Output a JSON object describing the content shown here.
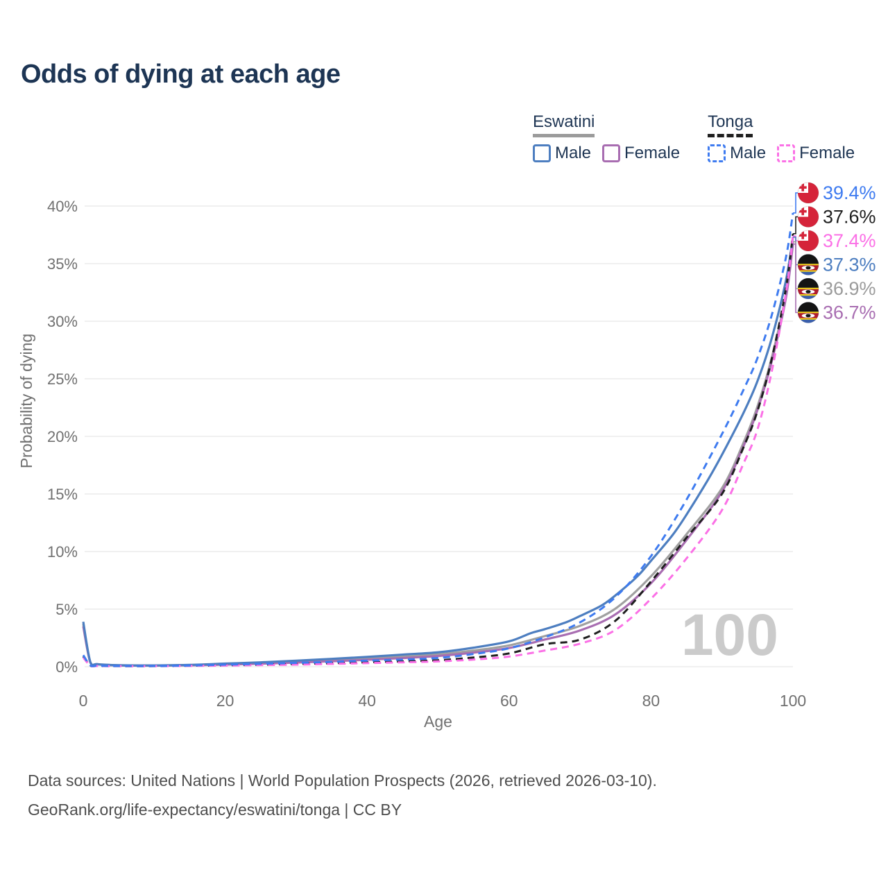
{
  "title": "Odds of dying at each age",
  "watermark_age": "100",
  "legend": {
    "groups": [
      {
        "name": "Eswatini",
        "line_style": "solid",
        "line_color": "#9b9b9b",
        "items": [
          {
            "label": "Male",
            "color": "#4d7ec0",
            "dashed": false
          },
          {
            "label": "Female",
            "color": "#a86db1",
            "dashed": false
          }
        ]
      },
      {
        "name": "Tonga",
        "line_style": "dashed",
        "line_color": "#1f1f1f",
        "items": [
          {
            "label": "Male",
            "color": "#3e7bf0",
            "dashed": true
          },
          {
            "label": "Female",
            "color": "#fb70e6",
            "dashed": true
          }
        ]
      }
    ]
  },
  "chart_data": {
    "type": "line",
    "title": "Odds of dying at each age",
    "xlabel": "Age",
    "ylabel": "Probability of dying",
    "xlim": [
      0,
      100
    ],
    "ylim": [
      0,
      40
    ],
    "grid": "horizontal",
    "x_ticks": [
      {
        "value": 0,
        "label": "0"
      },
      {
        "value": 20,
        "label": "20"
      },
      {
        "value": 40,
        "label": "40"
      },
      {
        "value": 60,
        "label": "60"
      },
      {
        "value": 80,
        "label": "80"
      },
      {
        "value": 100,
        "label": "100"
      }
    ],
    "y_ticks": [
      {
        "value": 0,
        "label": "0%"
      },
      {
        "value": 5,
        "label": "5%"
      },
      {
        "value": 10,
        "label": "10%"
      },
      {
        "value": 15,
        "label": "15%"
      },
      {
        "value": 20,
        "label": "20%"
      },
      {
        "value": 25,
        "label": "25%"
      },
      {
        "value": 30,
        "label": "30%"
      },
      {
        "value": 35,
        "label": "35%"
      },
      {
        "value": 40,
        "label": "40%"
      }
    ],
    "series": [
      {
        "name": "Eswatini Total",
        "country": "Eswatini",
        "sex": "Both",
        "color": "#a0a0a0",
        "dashed": false,
        "end_value": 36.9,
        "points": [
          [
            0,
            3.7
          ],
          [
            1,
            0.38
          ],
          [
            2,
            0.21
          ],
          [
            5,
            0.12
          ],
          [
            10,
            0.1
          ],
          [
            15,
            0.14
          ],
          [
            20,
            0.22
          ],
          [
            25,
            0.31
          ],
          [
            30,
            0.43
          ],
          [
            35,
            0.56
          ],
          [
            40,
            0.71
          ],
          [
            45,
            0.88
          ],
          [
            50,
            1.07
          ],
          [
            55,
            1.4
          ],
          [
            60,
            1.85
          ],
          [
            65,
            2.65
          ],
          [
            70,
            3.55
          ],
          [
            75,
            5.05
          ],
          [
            80,
            7.85
          ],
          [
            85,
            11.5
          ],
          [
            90,
            15.5
          ],
          [
            93,
            19.4
          ],
          [
            95,
            22.6
          ],
          [
            97,
            26.8
          ],
          [
            99,
            32.3
          ],
          [
            100,
            36.9
          ]
        ]
      },
      {
        "name": "Eswatini Female",
        "country": "Eswatini",
        "sex": "Female",
        "color": "#a86db1",
        "dashed": false,
        "end_value": 36.7,
        "points": [
          [
            0,
            3.5
          ],
          [
            1,
            0.36
          ],
          [
            2,
            0.2
          ],
          [
            5,
            0.11
          ],
          [
            10,
            0.09
          ],
          [
            15,
            0.12
          ],
          [
            20,
            0.18
          ],
          [
            25,
            0.26
          ],
          [
            30,
            0.36
          ],
          [
            35,
            0.47
          ],
          [
            40,
            0.6
          ],
          [
            45,
            0.75
          ],
          [
            50,
            0.93
          ],
          [
            55,
            1.22
          ],
          [
            60,
            1.62
          ],
          [
            65,
            2.35
          ],
          [
            70,
            3.15
          ],
          [
            75,
            4.55
          ],
          [
            80,
            7.25
          ],
          [
            85,
            11.0
          ],
          [
            90,
            15.2
          ],
          [
            93,
            19.1
          ],
          [
            95,
            22.3
          ],
          [
            97,
            26.5
          ],
          [
            99,
            32.0
          ],
          [
            100,
            36.7
          ]
        ]
      },
      {
        "name": "Eswatini Male",
        "country": "Eswatini",
        "sex": "Male",
        "color": "#4d7ec0",
        "dashed": false,
        "end_value": 37.3,
        "points": [
          [
            0,
            3.9
          ],
          [
            1,
            0.4
          ],
          [
            2,
            0.22
          ],
          [
            5,
            0.13
          ],
          [
            10,
            0.11
          ],
          [
            15,
            0.16
          ],
          [
            20,
            0.27
          ],
          [
            25,
            0.38
          ],
          [
            30,
            0.52
          ],
          [
            35,
            0.68
          ],
          [
            40,
            0.85
          ],
          [
            45,
            1.05
          ],
          [
            50,
            1.25
          ],
          [
            55,
            1.65
          ],
          [
            60,
            2.2
          ],
          [
            63,
            2.9
          ],
          [
            65,
            3.25
          ],
          [
            68,
            3.85
          ],
          [
            70,
            4.4
          ],
          [
            73,
            5.3
          ],
          [
            75,
            6.2
          ],
          [
            78,
            7.8
          ],
          [
            80,
            9.2
          ],
          [
            83,
            11.4
          ],
          [
            85,
            13.2
          ],
          [
            88,
            16.2
          ],
          [
            90,
            18.4
          ],
          [
            93,
            22.0
          ],
          [
            95,
            24.8
          ],
          [
            97,
            28.5
          ],
          [
            99,
            33.5
          ],
          [
            100,
            37.3
          ]
        ]
      },
      {
        "name": "Tonga Total",
        "country": "Tonga",
        "sex": "Both",
        "color": "#1f1f1f",
        "dashed": true,
        "end_value": 37.6,
        "points": [
          [
            0,
            0.9
          ],
          [
            1,
            0.1
          ],
          [
            2,
            0.07
          ],
          [
            5,
            0.05
          ],
          [
            10,
            0.05
          ],
          [
            15,
            0.08
          ],
          [
            20,
            0.12
          ],
          [
            25,
            0.17
          ],
          [
            30,
            0.23
          ],
          [
            35,
            0.3
          ],
          [
            40,
            0.38
          ],
          [
            45,
            0.46
          ],
          [
            50,
            0.56
          ],
          [
            55,
            0.8
          ],
          [
            60,
            1.15
          ],
          [
            65,
            1.95
          ],
          [
            70,
            2.35
          ],
          [
            75,
            4.0
          ],
          [
            80,
            7.4
          ],
          [
            85,
            11.2
          ],
          [
            90,
            15.0
          ],
          [
            93,
            19.0
          ],
          [
            95,
            22.2
          ],
          [
            97,
            26.7
          ],
          [
            99,
            32.8
          ],
          [
            100,
            37.6
          ]
        ]
      },
      {
        "name": "Tonga Female",
        "country": "Tonga",
        "sex": "Female",
        "color": "#fb70e6",
        "dashed": true,
        "end_value": 37.4,
        "points": [
          [
            0,
            0.8
          ],
          [
            1,
            0.09
          ],
          [
            2,
            0.06
          ],
          [
            5,
            0.05
          ],
          [
            10,
            0.05
          ],
          [
            15,
            0.07
          ],
          [
            20,
            0.1
          ],
          [
            25,
            0.14
          ],
          [
            30,
            0.18
          ],
          [
            35,
            0.24
          ],
          [
            40,
            0.31
          ],
          [
            45,
            0.38
          ],
          [
            50,
            0.46
          ],
          [
            55,
            0.62
          ],
          [
            60,
            0.88
          ],
          [
            65,
            1.4
          ],
          [
            70,
            2.0
          ],
          [
            75,
            3.2
          ],
          [
            80,
            5.9
          ],
          [
            85,
            9.4
          ],
          [
            90,
            13.6
          ],
          [
            93,
            17.6
          ],
          [
            95,
            20.6
          ],
          [
            97,
            25.6
          ],
          [
            99,
            32.4
          ],
          [
            100,
            37.4
          ]
        ]
      },
      {
        "name": "Tonga Male",
        "country": "Tonga",
        "sex": "Male",
        "color": "#3e7bf0",
        "dashed": true,
        "end_value": 39.4,
        "points": [
          [
            0,
            1.0
          ],
          [
            1,
            0.12
          ],
          [
            2,
            0.08
          ],
          [
            5,
            0.06
          ],
          [
            10,
            0.06
          ],
          [
            15,
            0.1
          ],
          [
            20,
            0.18
          ],
          [
            25,
            0.25
          ],
          [
            30,
            0.33
          ],
          [
            35,
            0.42
          ],
          [
            40,
            0.53
          ],
          [
            45,
            0.62
          ],
          [
            50,
            0.76
          ],
          [
            55,
            1.1
          ],
          [
            60,
            1.6
          ],
          [
            65,
            2.55
          ],
          [
            70,
            3.85
          ],
          [
            75,
            6.05
          ],
          [
            80,
            9.6
          ],
          [
            85,
            14.5
          ],
          [
            90,
            20.2
          ],
          [
            93,
            24.0
          ],
          [
            95,
            26.8
          ],
          [
            97,
            30.5
          ],
          [
            99,
            35.5
          ],
          [
            100,
            39.4
          ]
        ]
      }
    ],
    "end_labels": [
      {
        "text": "39.4%",
        "value": 39.4,
        "color": "#3e7bf0",
        "flag": "tonga",
        "series": "Tonga Male"
      },
      {
        "text": "37.6%",
        "value": 37.6,
        "color": "#1f1f1f",
        "flag": "tonga",
        "series": "Tonga Total"
      },
      {
        "text": "37.4%",
        "value": 37.4,
        "color": "#fb70e6",
        "flag": "tonga",
        "series": "Tonga Female"
      },
      {
        "text": "37.3%",
        "value": 37.3,
        "color": "#4d7ec0",
        "flag": "eswatini",
        "series": "Eswatini Male"
      },
      {
        "text": "36.9%",
        "value": 36.9,
        "color": "#9b9b9b",
        "flag": "eswatini",
        "series": "Eswatini Total"
      },
      {
        "text": "36.7%",
        "value": 36.7,
        "color": "#a86db1",
        "flag": "eswatini",
        "series": "Eswatini Female"
      }
    ]
  },
  "footer": {
    "line1": "Data sources: United Nations | World Population Prospects (2026, retrieved 2026-03-10).",
    "line2": "GeoRank.org/life-expectancy/eswatini/tonga | CC BY"
  }
}
